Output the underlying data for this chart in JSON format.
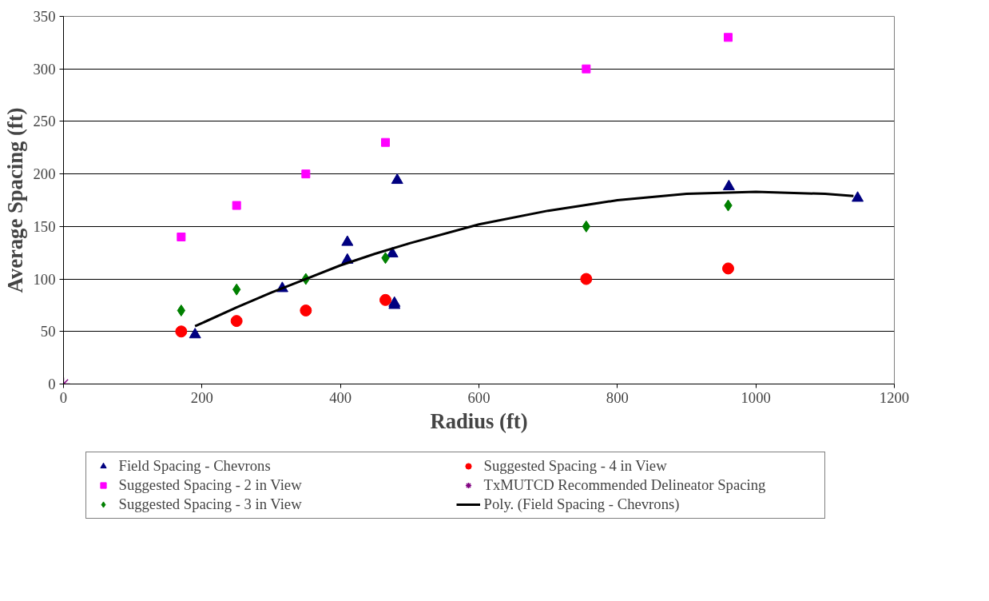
{
  "chart_data": {
    "type": "scatter",
    "xlabel": "Radius (ft)",
    "ylabel": "Average Spacing (ft)",
    "xlim": [
      0,
      1200
    ],
    "xticks": [
      0,
      200,
      400,
      600,
      800,
      1000,
      1200
    ],
    "ylim": [
      0,
      350
    ],
    "yticks": [
      0,
      50,
      100,
      150,
      200,
      250,
      300,
      350
    ],
    "grid": "y",
    "legend": "bottom",
    "series": [
      {
        "name": "Field Spacing - Chevrons",
        "color": "#000080",
        "marker": "triangle",
        "x": [
          190,
          316,
          410,
          410,
          475,
          478,
          478,
          482,
          961,
          1147
        ],
        "values": [
          47,
          91,
          135,
          118,
          124,
          77,
          75,
          194,
          188,
          177
        ]
      },
      {
        "name": "Suggested Spacing - 2 in View",
        "color": "#ff00ff",
        "marker": "square",
        "x": [
          170,
          250,
          350,
          465,
          755,
          960
        ],
        "values": [
          140,
          170,
          200,
          230,
          300,
          330
        ]
      },
      {
        "name": "Suggested Spacing - 3 in View",
        "color": "#008000",
        "marker": "diamond",
        "x": [
          170,
          250,
          350,
          465,
          755,
          960
        ],
        "values": [
          70,
          90,
          100,
          120,
          150,
          170
        ]
      },
      {
        "name": "Suggested Spacing - 4 in View",
        "color": "#ff0000",
        "marker": "circle",
        "x": [
          170,
          250,
          350,
          465,
          755,
          960
        ],
        "values": [
          50,
          60,
          70,
          80,
          100,
          110
        ]
      },
      {
        "name": "TxMUTCD Recommended Delineator Spacing",
        "color": "#800080",
        "marker": "cross",
        "x": [
          0
        ],
        "values": [
          0
        ]
      },
      {
        "name": "Poly. (Field Spacing - Chevrons)",
        "color": "#000000",
        "type": "line",
        "marker": "none",
        "line_style": "solid",
        "x": [
          190,
          250,
          300,
          350,
          400,
          450,
          500,
          600,
          700,
          800,
          900,
          1000,
          1100,
          1141
        ],
        "values": [
          55,
          73,
          87,
          100,
          113,
          124,
          134,
          152,
          165,
          175,
          181,
          183,
          181,
          179
        ]
      }
    ]
  }
}
